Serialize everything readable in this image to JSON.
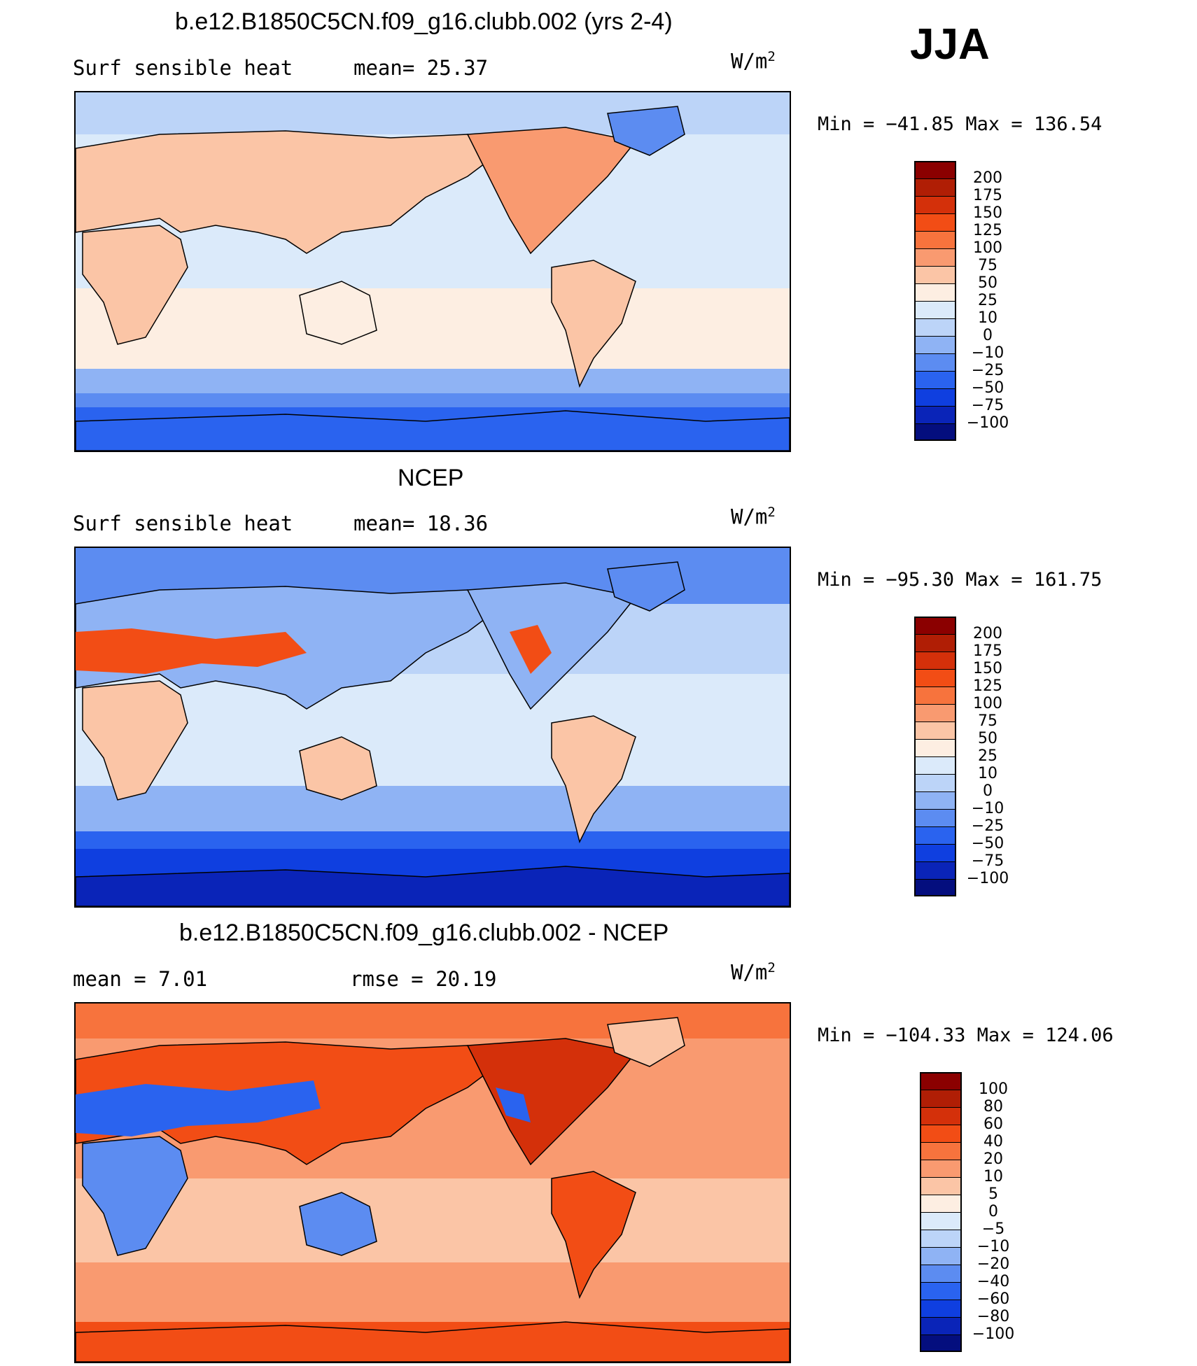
{
  "season": "JJA",
  "units": {
    "base": "W/m",
    "exp": "2"
  },
  "panels": [
    {
      "title": "b.e12.B1850C5CN.f09_g16.clubb.002 (yrs 2-4)",
      "left_text": "Surf sensible heat",
      "mid_text": "mean=  25.37",
      "min_max": "Min = −41.85 Max = 136.54",
      "scale": "field",
      "stats": {
        "mean": 25.37,
        "min": -41.85,
        "max": 136.54
      }
    },
    {
      "title": "NCEP",
      "left_text": "Surf sensible heat",
      "mid_text": "mean=  18.36",
      "min_max": "Min = −95.30 Max = 161.75",
      "scale": "field",
      "stats": {
        "mean": 18.36,
        "min": -95.3,
        "max": 161.75
      }
    },
    {
      "title": "b.e12.B1850C5CN.f09_g16.clubb.002 - NCEP",
      "left_text": "mean =    7.01",
      "mid_text": "rmse =   20.19",
      "min_max": "Min = −104.33 Max = 124.06",
      "scale": "diff",
      "stats": {
        "mean": 7.01,
        "rmse": 20.19,
        "min": -104.33,
        "max": 124.06
      }
    }
  ],
  "colorbars": {
    "field": {
      "labels": [
        "200",
        "175",
        "150",
        "125",
        "100",
        "75",
        "50",
        "25",
        "10",
        "0",
        "−10",
        "−25",
        "−50",
        "−75",
        "−100"
      ],
      "colors": [
        "#8b0000",
        "#b01e05",
        "#d4300a",
        "#f24d15",
        "#f7733d",
        "#f99a70",
        "#fbc5a6",
        "#fdeee2",
        "#dbeafa",
        "#bcd4f8",
        "#8fb3f4",
        "#5c8cf1",
        "#2a63ef",
        "#0f3fe0",
        "#0a24b8",
        "#040e7e"
      ]
    },
    "diff": {
      "labels": [
        "100",
        "80",
        "60",
        "40",
        "20",
        "10",
        "5",
        "0",
        "−5",
        "−10",
        "−20",
        "−40",
        "−60",
        "−80",
        "−100"
      ],
      "colors": [
        "#8b0000",
        "#b01e05",
        "#d4300a",
        "#f24d15",
        "#f7733d",
        "#f99a70",
        "#fbc5a6",
        "#fdeee2",
        "#dbeafa",
        "#bcd4f8",
        "#8fb3f4",
        "#5c8cf1",
        "#2a63ef",
        "#0f3fe0",
        "#0a24b8",
        "#040e7e"
      ]
    }
  }
}
